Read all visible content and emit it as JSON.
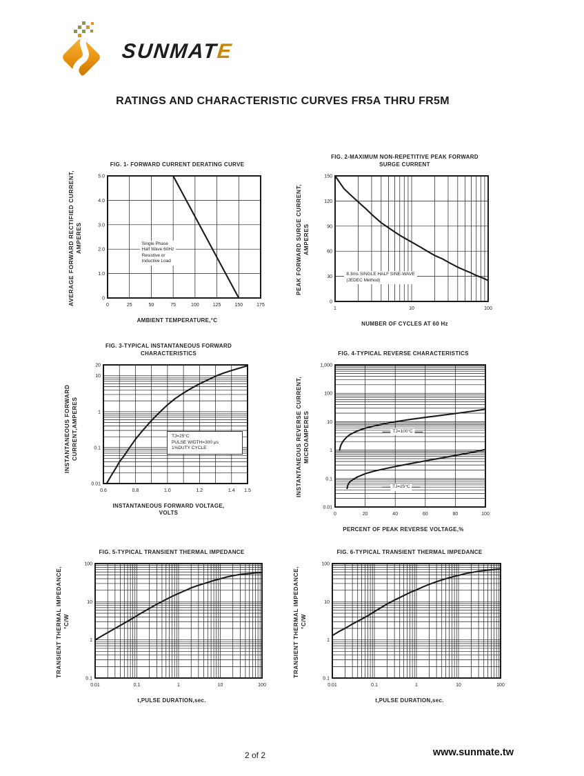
{
  "page": {
    "title": "RATINGS AND CHARACTERISTIC CURVES FR5A THRU FR5M",
    "footer": {
      "page_number": "2 of 2",
      "website": "www.sunmate.tw"
    },
    "logo": {
      "text_main": "SUNMAT",
      "text_accent": "E"
    }
  },
  "colors": {
    "ink": "#1a1a1a",
    "logo_orange": "#e8920f",
    "logo_orange_light": "#f7b43c",
    "logo_orange_dark": "#c87800",
    "logo_green": "#8a9b3c",
    "accent_letter": "#c8860a"
  },
  "chart_data": [
    {
      "id": "fig1",
      "type": "line",
      "title_lines": [
        "FIG. 1- FORWARD CURRENT DERATING CURVE"
      ],
      "ylabel_lines": [
        "AVERAGE FORWARD RECTIFIED CURRENT,",
        "AMPERES"
      ],
      "xlabel_lines": [
        "AMBIENT TEMPERATURE,°C"
      ],
      "x": {
        "scale": "linear",
        "min": 0,
        "max": 175,
        "gridstep": 25,
        "ticks": [
          {
            "v": 0,
            "t": "0"
          },
          {
            "v": 25,
            "t": "25"
          },
          {
            "v": 50,
            "t": "50"
          },
          {
            "v": 75,
            "t": "75"
          },
          {
            "v": 100,
            "t": "100"
          },
          {
            "v": 125,
            "t": "125"
          },
          {
            "v": 150,
            "t": "150"
          },
          {
            "v": 175,
            "t": "175"
          }
        ]
      },
      "y": {
        "scale": "linear",
        "min": 0,
        "max": 5,
        "gridstep": 1,
        "ticks": [
          {
            "v": 0,
            "t": "0"
          },
          {
            "v": 1,
            "t": "1.0"
          },
          {
            "v": 2,
            "t": "2.0"
          },
          {
            "v": 3,
            "t": "3.0"
          },
          {
            "v": 4,
            "t": "4.0"
          },
          {
            "v": 5,
            "t": "5.0"
          }
        ]
      },
      "series": [
        {
          "name": "derating",
          "points": [
            [
              75,
              5
            ],
            [
              150,
              0
            ]
          ]
        }
      ],
      "annotations": [
        {
          "style": "plain",
          "fx": 0.21,
          "fy": 0.53,
          "lines": [
            "Single Phase",
            "Half Wave 60Hz",
            "Resistive or",
            "Inductive Load"
          ]
        }
      ]
    },
    {
      "id": "fig2",
      "type": "line",
      "title_lines": [
        "FIG. 2-MAXIMUM NON-REPETITIVE PEAK FORWARD",
        "SURGE CURRENT"
      ],
      "ylabel_lines": [
        "PEAK  FORWARD SURGE CURRENT,",
        "AMPERES"
      ],
      "xlabel_lines": [
        "NUMBER OF CYCLES AT 60 Hz"
      ],
      "x": {
        "scale": "log",
        "min": 1,
        "max": 100,
        "ticks": [
          {
            "v": 1,
            "t": "1"
          },
          {
            "v": 10,
            "t": "10"
          },
          {
            "v": 100,
            "t": "100"
          }
        ]
      },
      "y": {
        "scale": "linear",
        "min": 0,
        "max": 150,
        "gridstep": 30,
        "ticks": [
          {
            "v": 0,
            "t": "0"
          },
          {
            "v": 30,
            "t": "30"
          },
          {
            "v": 60,
            "t": "60"
          },
          {
            "v": 90,
            "t": "90"
          },
          {
            "v": 120,
            "t": "120"
          },
          {
            "v": 150,
            "t": "150"
          }
        ]
      },
      "series": [
        {
          "name": "surge-current",
          "points": [
            [
              1,
              150
            ],
            [
              1.3,
              135
            ],
            [
              1.6,
              127
            ],
            [
              2,
              119
            ],
            [
              2.5,
              111
            ],
            [
              3,
              104
            ],
            [
              4,
              94
            ],
            [
              5,
              88
            ],
            [
              6,
              83
            ],
            [
              7,
              79
            ],
            [
              8,
              76
            ],
            [
              10,
              71
            ],
            [
              13,
              65
            ],
            [
              16,
              60
            ],
            [
              20,
              55
            ],
            [
              25,
              51
            ],
            [
              30,
              47
            ],
            [
              40,
              41
            ],
            [
              50,
              37
            ],
            [
              60,
              34
            ],
            [
              70,
              31
            ],
            [
              85,
              28
            ],
            [
              100,
              25
            ]
          ]
        }
      ],
      "annotations": [
        {
          "style": "plain",
          "fx": 0.06,
          "fy": 0.76,
          "lines": [
            "8.3ms SINGLE HALF SINE-WAVE",
            "(JEDEC Method)"
          ]
        }
      ]
    },
    {
      "id": "fig3",
      "type": "line",
      "title_lines": [
        "FIG. 3-TYPICAL INSTANTANEOUS FORWARD",
        "CHARACTERISTICS"
      ],
      "ylabel_lines": [
        "INSTANTANEOUS FORWARD",
        "CURRENT,AMPERES"
      ],
      "xlabel_lines": [
        "INSTANTANEOUS FORWARD VOLTAGE,",
        "VOLTS"
      ],
      "x": {
        "scale": "linear",
        "min": 0.6,
        "max": 1.5,
        "gridstep": 0.1,
        "ticks": [
          {
            "v": 0.6,
            "t": "0.6"
          },
          {
            "v": 0.8,
            "t": "0.8"
          },
          {
            "v": 1.0,
            "t": "1.0"
          },
          {
            "v": 1.2,
            "t": "1.2"
          },
          {
            "v": 1.4,
            "t": "1.4"
          },
          {
            "v": 1.5,
            "t": "1.5"
          }
        ]
      },
      "y": {
        "scale": "log",
        "min": 0.01,
        "max": 20,
        "ticks": [
          {
            "v": 0.01,
            "t": "0.01"
          },
          {
            "v": 0.1,
            "t": "0.1"
          },
          {
            "v": 1,
            "t": "1"
          },
          {
            "v": 10,
            "t": "10"
          },
          {
            "v": 20,
            "t": "20"
          }
        ]
      },
      "series": [
        {
          "name": "forward-characteristic",
          "points": [
            [
              0.62,
              0.01
            ],
            [
              0.65,
              0.017
            ],
            [
              0.68,
              0.028
            ],
            [
              0.7,
              0.04
            ],
            [
              0.73,
              0.06
            ],
            [
              0.76,
              0.095
            ],
            [
              0.8,
              0.17
            ],
            [
              0.84,
              0.28
            ],
            [
              0.88,
              0.45
            ],
            [
              0.92,
              0.7
            ],
            [
              0.96,
              1.05
            ],
            [
              1.0,
              1.55
            ],
            [
              1.05,
              2.35
            ],
            [
              1.1,
              3.3
            ],
            [
              1.15,
              4.5
            ],
            [
              1.2,
              5.9
            ],
            [
              1.25,
              7.6
            ],
            [
              1.3,
              9.7
            ],
            [
              1.35,
              11.8
            ],
            [
              1.4,
              14
            ],
            [
              1.45,
              16.3
            ],
            [
              1.5,
              19
            ]
          ]
        }
      ],
      "annotations": [
        {
          "style": "boxed",
          "fx": 0.44,
          "fy": 0.56,
          "lines": [
            "TJ=25°C",
            "PULSE WIDTH=300 μs",
            "1%DUTY CYCLE"
          ]
        }
      ]
    },
    {
      "id": "fig4",
      "type": "line",
      "title_lines": [
        "FIG. 4-TYPICAL REVERSE CHARACTERISTICS"
      ],
      "ylabel_lines": [
        "INSTANTANEOUS REVERSE  CURRENT,",
        "MICROAMPERES"
      ],
      "xlabel_lines": [
        "PERCENT OF PEAK REVERSE VOLTAGE,%"
      ],
      "x": {
        "scale": "linear",
        "min": 0,
        "max": 100,
        "gridstep": 20,
        "ticks": [
          {
            "v": 0,
            "t": "0"
          },
          {
            "v": 20,
            "t": "20"
          },
          {
            "v": 40,
            "t": "40"
          },
          {
            "v": 60,
            "t": "60"
          },
          {
            "v": 80,
            "t": "80"
          },
          {
            "v": 100,
            "t": "100"
          }
        ]
      },
      "y": {
        "scale": "log",
        "min": 0.01,
        "max": 1000,
        "ticks": [
          {
            "v": 0.01,
            "t": "0.01"
          },
          {
            "v": 0.1,
            "t": "0.1"
          },
          {
            "v": 1,
            "t": "1"
          },
          {
            "v": 10,
            "t": "10"
          },
          {
            "v": 100,
            "t": "100"
          },
          {
            "v": 1000,
            "t": "1,000"
          }
        ]
      },
      "series": [
        {
          "name": "TJ=100C",
          "points": [
            [
              3,
              1
            ],
            [
              3.5,
              1.3
            ],
            [
              4,
              1.55
            ],
            [
              5,
              1.95
            ],
            [
              6,
              2.3
            ],
            [
              8,
              2.95
            ],
            [
              10,
              3.55
            ],
            [
              13,
              4.3
            ],
            [
              16,
              5
            ],
            [
              20,
              5.9
            ],
            [
              25,
              6.9
            ],
            [
              30,
              7.9
            ],
            [
              35,
              8.9
            ],
            [
              40,
              10
            ],
            [
              50,
              12
            ],
            [
              60,
              14.2
            ],
            [
              70,
              16.6
            ],
            [
              80,
              19.5
            ],
            [
              90,
              23
            ],
            [
              100,
              27.5
            ]
          ]
        },
        {
          "name": "TJ=25C",
          "points": [
            [
              8,
              0.045
            ],
            [
              8.5,
              0.058
            ],
            [
              9,
              0.067
            ],
            [
              10,
              0.078
            ],
            [
              12,
              0.094
            ],
            [
              15,
              0.115
            ],
            [
              20,
              0.148
            ],
            [
              25,
              0.177
            ],
            [
              30,
              0.205
            ],
            [
              40,
              0.265
            ],
            [
              50,
              0.335
            ],
            [
              60,
              0.42
            ],
            [
              70,
              0.52
            ],
            [
              80,
              0.65
            ],
            [
              90,
              0.82
            ],
            [
              100,
              1.05
            ]
          ]
        }
      ],
      "annotations": [
        {
          "style": "dashes",
          "anchor": "center",
          "fx": 0.45,
          "fy": 0.47,
          "lines": [
            "TJ=100°C"
          ]
        },
        {
          "style": "dashes",
          "anchor": "center",
          "fx": 0.44,
          "fy": 0.86,
          "lines": [
            "TJ=25°C"
          ]
        }
      ]
    },
    {
      "id": "fig5",
      "type": "line",
      "title_lines": [
        "FIG. 5-TYPICAL TRANSIENT THERMAL IMPEDANCE"
      ],
      "ylabel_lines": [
        "TRANSIENT THERMAL IMPEDANCE,",
        "°C/W"
      ],
      "xlabel_lines": [
        "t,PULSE DURATION,sec."
      ],
      "x": {
        "scale": "log",
        "min": 0.01,
        "max": 100,
        "ticks": [
          {
            "v": 0.01,
            "t": "0.01"
          },
          {
            "v": 0.1,
            "t": "0.1"
          },
          {
            "v": 1,
            "t": "1"
          },
          {
            "v": 10,
            "t": "10"
          },
          {
            "v": 100,
            "t": "100"
          }
        ]
      },
      "y": {
        "scale": "log",
        "min": 0.1,
        "max": 100,
        "ticks": [
          {
            "v": 0.1,
            "t": "0.1"
          },
          {
            "v": 1,
            "t": "1"
          },
          {
            "v": 10,
            "t": "10"
          },
          {
            "v": 100,
            "t": "100"
          }
        ]
      },
      "series": [
        {
          "name": "thermal-impedance",
          "points": [
            [
              0.01,
              1
            ],
            [
              0.015,
              1.3
            ],
            [
              0.02,
              1.55
            ],
            [
              0.03,
              2
            ],
            [
              0.05,
              2.75
            ],
            [
              0.07,
              3.4
            ],
            [
              0.1,
              4.3
            ],
            [
              0.15,
              5.6
            ],
            [
              0.2,
              6.7
            ],
            [
              0.3,
              8.6
            ],
            [
              0.5,
              11.5
            ],
            [
              0.7,
              13.8
            ],
            [
              1,
              16.5
            ],
            [
              1.5,
              20
            ],
            [
              2,
              23
            ],
            [
              3,
              27
            ],
            [
              5,
              32
            ],
            [
              7,
              36
            ],
            [
              10,
              40
            ],
            [
              15,
              45
            ],
            [
              20,
              48
            ],
            [
              30,
              52
            ],
            [
              50,
              55
            ],
            [
              70,
              57
            ],
            [
              100,
              58
            ]
          ]
        }
      ],
      "annotations": []
    },
    {
      "id": "fig6",
      "type": "line",
      "title_lines": [
        "FIG. 6-TYPICAL TRANSIENT THERMAL IMPEDANCE"
      ],
      "ylabel_lines": [
        "TRANSIENT THERMAL IMPEDANCE,",
        "°C/W"
      ],
      "xlabel_lines": [
        "t,PULSE DURATION,sec."
      ],
      "x": {
        "scale": "log",
        "min": 0.01,
        "max": 100,
        "ticks": [
          {
            "v": 0.01,
            "t": "0.01"
          },
          {
            "v": 0.1,
            "t": "0.1"
          },
          {
            "v": 1,
            "t": "1"
          },
          {
            "v": 10,
            "t": "10"
          },
          {
            "v": 100,
            "t": "100"
          }
        ]
      },
      "y": {
        "scale": "log",
        "min": 0.1,
        "max": 100,
        "ticks": [
          {
            "v": 0.1,
            "t": "0.1"
          },
          {
            "v": 1,
            "t": "1"
          },
          {
            "v": 10,
            "t": "10"
          },
          {
            "v": 100,
            "t": "100"
          }
        ]
      },
      "series": [
        {
          "name": "thermal-impedance",
          "points": [
            [
              0.01,
              1.3
            ],
            [
              0.015,
              1.7
            ],
            [
              0.02,
              2
            ],
            [
              0.03,
              2.6
            ],
            [
              0.05,
              3.5
            ],
            [
              0.07,
              4.3
            ],
            [
              0.1,
              5.5
            ],
            [
              0.15,
              7.2
            ],
            [
              0.2,
              8.7
            ],
            [
              0.3,
              11
            ],
            [
              0.5,
              14.5
            ],
            [
              0.7,
              17.5
            ],
            [
              1,
              20.5
            ],
            [
              1.5,
              25
            ],
            [
              2,
              28.5
            ],
            [
              3,
              33.5
            ],
            [
              5,
              40
            ],
            [
              7,
              44.5
            ],
            [
              10,
              49
            ],
            [
              15,
              55
            ],
            [
              20,
              58
            ],
            [
              30,
              63
            ],
            [
              50,
              67
            ],
            [
              70,
              70
            ],
            [
              100,
              72
            ]
          ]
        }
      ],
      "annotations": []
    }
  ]
}
